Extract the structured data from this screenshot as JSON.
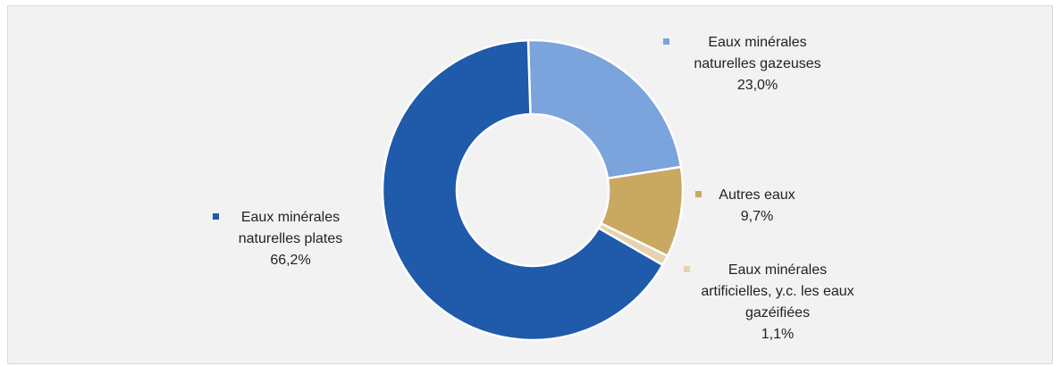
{
  "chart_data": {
    "type": "pie",
    "categories": [
      "Eaux minérales naturelles gazeuses",
      "Autres eaux",
      "Eaux minérales artificielles, y.c. les eaux gazéifiées",
      "Eaux minérales naturelles plates"
    ],
    "values": [
      23.0,
      9.7,
      1.1,
      66.2
    ],
    "value_labels": [
      "23,0%",
      "9,7%",
      "1,1%",
      "66,2%"
    ],
    "colors": [
      "#7ba3dc",
      "#c9a862",
      "#e6d2ae",
      "#1f5aab"
    ],
    "donut": true
  }
}
